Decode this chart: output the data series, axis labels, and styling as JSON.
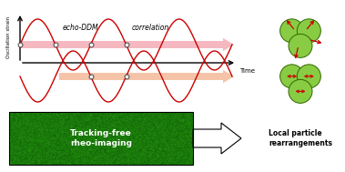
{
  "bg_color": "#ffffff",
  "fig_width": 3.79,
  "fig_height": 1.89,
  "sine_color": "#cc0000",
  "arrow_pink_upper": "#f5b8c0",
  "arrow_pink_lower": "#f5c4a8",
  "text_echo_ddm": "echo-DDM",
  "text_correlation": "correlation",
  "text_time": "Time",
  "text_y": "Oscillation strain",
  "text_tracking": "Tracking-free\nrheo-imaging",
  "text_local": "Local particle\nrearrangements",
  "circle_green": "#88cc44",
  "circle_edge": "#336600",
  "arrow_red_color": "#cc0000",
  "dot_fc": "#ffffff",
  "dot_ec": "#444444"
}
